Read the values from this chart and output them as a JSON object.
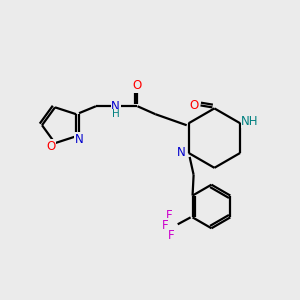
{
  "bg_color": "#ebebeb",
  "bond_color": "#000000",
  "atom_colors": {
    "O": "#ff0000",
    "N": "#0000cd",
    "NH": "#008080",
    "F": "#cc00cc",
    "H": "#008080",
    "C": "#000000"
  },
  "figsize": [
    3.0,
    3.0
  ],
  "dpi": 100
}
